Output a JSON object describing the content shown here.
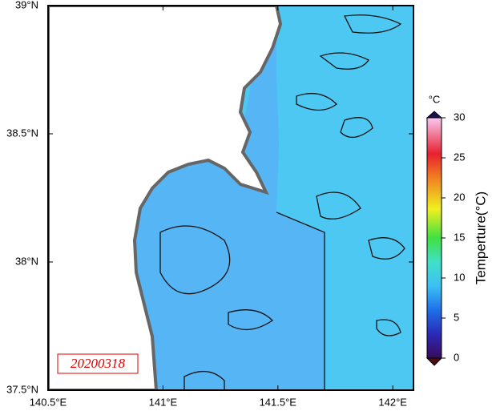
{
  "map": {
    "xlim": [
      140.5,
      142.09
    ],
    "ylim": [
      37.5,
      39
    ],
    "xticks": [
      {
        "value": 140.5,
        "label": "140.5°E"
      },
      {
        "value": 141,
        "label": "141°E"
      },
      {
        "value": 141.5,
        "label": "141.5°E"
      },
      {
        "value": 142,
        "label": "142°E"
      }
    ],
    "yticks": [
      {
        "value": 37.5,
        "label": "37.5°N"
      },
      {
        "value": 38,
        "label": "38°N"
      },
      {
        "value": 38.5,
        "label": "38.5°N"
      },
      {
        "value": 39,
        "label": "39°N"
      }
    ],
    "date": "20200318",
    "colorbar": {
      "unit": "°C",
      "label": "Temperture(°C)",
      "lim": [
        0,
        30
      ],
      "ticks": [
        0,
        5,
        10,
        15,
        20,
        25,
        30
      ]
    }
  }
}
